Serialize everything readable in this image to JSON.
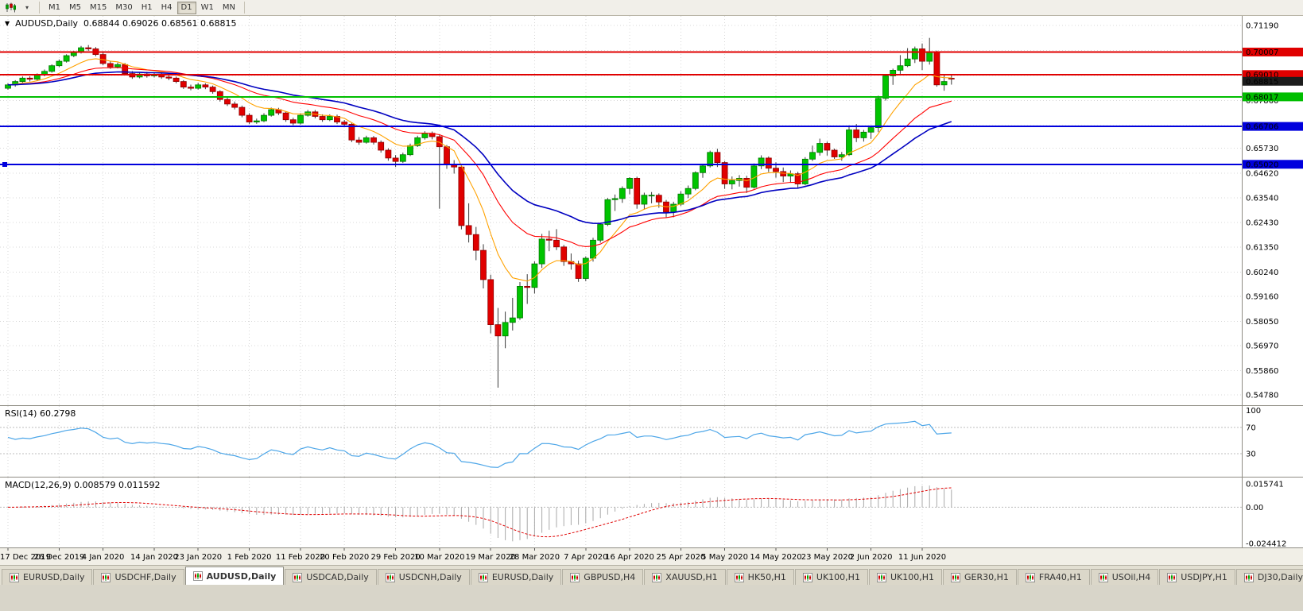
{
  "toolbar": {
    "chart_type_icon": "candlestick-chart",
    "dropdown_icon": "▾",
    "timeframes": [
      "M1",
      "M5",
      "M15",
      "M30",
      "H1",
      "H4",
      "D1",
      "W1",
      "MN"
    ],
    "active_timeframe": "D1"
  },
  "chart_header": {
    "collapse_icon": "▼",
    "symbol": "AUDUSD,Daily",
    "ohlc": "0.68844 0.69026 0.68561 0.68815"
  },
  "price_axis": {
    "labels": [
      "0.71190",
      "0.70080",
      "0.68970",
      "0.67860",
      "0.66750",
      "0.65730",
      "0.64620",
      "0.63540",
      "0.62430",
      "0.61350",
      "0.60240",
      "0.59160",
      "0.58050",
      "0.56970",
      "0.55860",
      "0.54780"
    ]
  },
  "chart_data": {
    "type": "candlestick",
    "symbol": "AUDUSD",
    "timeframe": "Daily",
    "y_range": [
      0.5478,
      0.7119
    ],
    "grid_color": "#d8d8d8",
    "candle_colors": {
      "up": "#00c400",
      "up_border": "#007700",
      "down": "#e00000",
      "down_border": "#8f0000",
      "wick": "#3a3a3a"
    },
    "x_labels": [
      "17 Dec 2019",
      "26 Dec 2019",
      "4 Jan 2020",
      "14 Jan 2020",
      "23 Jan 2020",
      "1 Feb 2020",
      "11 Feb 2020",
      "20 Feb 2020",
      "29 Feb 2020",
      "10 Mar 2020",
      "19 Mar 2020",
      "28 Mar 2020",
      "7 Apr 2020",
      "16 Apr 2020",
      "25 Apr 2020",
      "5 May 2020",
      "14 May 2020",
      "23 May 2020",
      "2 Jun 2020",
      "11 Jun 2020"
    ],
    "x_label_indices": [
      0,
      7,
      13,
      20,
      26,
      33,
      40,
      46,
      53,
      59,
      66,
      72,
      79,
      85,
      92,
      98,
      105,
      112,
      118,
      125
    ],
    "ohlc": [
      [
        0.684,
        0.6862,
        0.6833,
        0.6855
      ],
      [
        0.6855,
        0.6876,
        0.6847,
        0.687
      ],
      [
        0.687,
        0.6892,
        0.6864,
        0.6885
      ],
      [
        0.6885,
        0.6893,
        0.687,
        0.688
      ],
      [
        0.688,
        0.6906,
        0.6874,
        0.69
      ],
      [
        0.69,
        0.6923,
        0.6893,
        0.6915
      ],
      [
        0.6915,
        0.6946,
        0.6909,
        0.694
      ],
      [
        0.694,
        0.6968,
        0.6934,
        0.696
      ],
      [
        0.696,
        0.6991,
        0.6954,
        0.6985
      ],
      [
        0.6985,
        0.7006,
        0.6978,
        0.7
      ],
      [
        0.7,
        0.7028,
        0.6994,
        0.702
      ],
      [
        0.702,
        0.7032,
        0.7006,
        0.7015
      ],
      [
        0.7015,
        0.7023,
        0.6982,
        0.699
      ],
      [
        0.699,
        0.6998,
        0.6942,
        0.695
      ],
      [
        0.695,
        0.6961,
        0.6926,
        0.6935
      ],
      [
        0.6935,
        0.6954,
        0.6928,
        0.6945
      ],
      [
        0.6945,
        0.6952,
        0.6898,
        0.6905
      ],
      [
        0.6905,
        0.6916,
        0.6882,
        0.689
      ],
      [
        0.689,
        0.6912,
        0.6884,
        0.6903
      ],
      [
        0.6903,
        0.6913,
        0.6887,
        0.6895
      ],
      [
        0.6895,
        0.6909,
        0.6888,
        0.69
      ],
      [
        0.69,
        0.6908,
        0.6882,
        0.689
      ],
      [
        0.689,
        0.6899,
        0.6876,
        0.6885
      ],
      [
        0.6885,
        0.6892,
        0.6862,
        0.687
      ],
      [
        0.687,
        0.6876,
        0.6837,
        0.6845
      ],
      [
        0.6845,
        0.6856,
        0.6831,
        0.684
      ],
      [
        0.684,
        0.6864,
        0.6834,
        0.6855
      ],
      [
        0.6855,
        0.6862,
        0.6836,
        0.6845
      ],
      [
        0.6845,
        0.6852,
        0.6816,
        0.6825
      ],
      [
        0.6825,
        0.6831,
        0.6781,
        0.679
      ],
      [
        0.679,
        0.6801,
        0.6761,
        0.677
      ],
      [
        0.677,
        0.6781,
        0.6746,
        0.6755
      ],
      [
        0.6755,
        0.6763,
        0.6711,
        0.672
      ],
      [
        0.672,
        0.6729,
        0.6681,
        0.669
      ],
      [
        0.669,
        0.6705,
        0.6682,
        0.6695
      ],
      [
        0.6695,
        0.6729,
        0.6689,
        0.672
      ],
      [
        0.672,
        0.6754,
        0.6714,
        0.6745
      ],
      [
        0.6745,
        0.6753,
        0.6721,
        0.673
      ],
      [
        0.673,
        0.6738,
        0.6691,
        0.67
      ],
      [
        0.67,
        0.6709,
        0.6676,
        0.6685
      ],
      [
        0.6685,
        0.6729,
        0.6679,
        0.672
      ],
      [
        0.672,
        0.6744,
        0.6714,
        0.6735
      ],
      [
        0.6735,
        0.6743,
        0.6706,
        0.6715
      ],
      [
        0.6715,
        0.6724,
        0.6691,
        0.67
      ],
      [
        0.67,
        0.6724,
        0.6694,
        0.6715
      ],
      [
        0.6715,
        0.6723,
        0.6681,
        0.669
      ],
      [
        0.669,
        0.6699,
        0.6671,
        0.668
      ],
      [
        0.668,
        0.6687,
        0.6601,
        0.661
      ],
      [
        0.661,
        0.6623,
        0.6589,
        0.66
      ],
      [
        0.66,
        0.6629,
        0.6594,
        0.662
      ],
      [
        0.662,
        0.6628,
        0.659,
        0.66
      ],
      [
        0.66,
        0.6608,
        0.6554,
        0.6565
      ],
      [
        0.6565,
        0.6573,
        0.6518,
        0.653
      ],
      [
        0.653,
        0.6543,
        0.649,
        0.6515
      ],
      [
        0.6515,
        0.6554,
        0.6508,
        0.6545
      ],
      [
        0.6545,
        0.6594,
        0.6539,
        0.6585
      ],
      [
        0.6585,
        0.6629,
        0.6579,
        0.662
      ],
      [
        0.662,
        0.6649,
        0.6612,
        0.664
      ],
      [
        0.664,
        0.6648,
        0.6613,
        0.6625
      ],
      [
        0.6625,
        0.6634,
        0.6305,
        0.658
      ],
      [
        0.658,
        0.6588,
        0.6482,
        0.65
      ],
      [
        0.65,
        0.6521,
        0.6461,
        0.649
      ],
      [
        0.649,
        0.6498,
        0.6213,
        0.623
      ],
      [
        0.623,
        0.6329,
        0.6155,
        0.619
      ],
      [
        0.619,
        0.6224,
        0.6076,
        0.612
      ],
      [
        0.612,
        0.6147,
        0.5951,
        0.599
      ],
      [
        0.599,
        0.6012,
        0.5751,
        0.579
      ],
      [
        0.579,
        0.5864,
        0.551,
        0.574
      ],
      [
        0.574,
        0.5848,
        0.5685,
        0.58
      ],
      [
        0.58,
        0.5909,
        0.5764,
        0.582
      ],
      [
        0.582,
        0.5979,
        0.5811,
        0.596
      ],
      [
        0.596,
        0.6014,
        0.5882,
        0.5955
      ],
      [
        0.5955,
        0.6071,
        0.5928,
        0.606
      ],
      [
        0.606,
        0.6193,
        0.6042,
        0.617
      ],
      [
        0.617,
        0.6207,
        0.6116,
        0.6165
      ],
      [
        0.6165,
        0.6214,
        0.6121,
        0.6135
      ],
      [
        0.6135,
        0.6144,
        0.6051,
        0.607
      ],
      [
        0.607,
        0.6106,
        0.6034,
        0.606
      ],
      [
        0.606,
        0.6074,
        0.598,
        0.5995
      ],
      [
        0.5995,
        0.6093,
        0.5983,
        0.6085
      ],
      [
        0.6085,
        0.6176,
        0.607,
        0.6165
      ],
      [
        0.6165,
        0.6243,
        0.6154,
        0.6235
      ],
      [
        0.6235,
        0.6353,
        0.6228,
        0.6345
      ],
      [
        0.6345,
        0.6368,
        0.6295,
        0.635
      ],
      [
        0.635,
        0.6404,
        0.6331,
        0.6395
      ],
      [
        0.6395,
        0.6445,
        0.6369,
        0.644
      ],
      [
        0.644,
        0.6447,
        0.6305,
        0.6325
      ],
      [
        0.6325,
        0.6376,
        0.6301,
        0.6365
      ],
      [
        0.6365,
        0.6379,
        0.6329,
        0.6365
      ],
      [
        0.6365,
        0.6373,
        0.6309,
        0.6335
      ],
      [
        0.6335,
        0.6344,
        0.6265,
        0.629
      ],
      [
        0.629,
        0.6336,
        0.6267,
        0.6325
      ],
      [
        0.6325,
        0.6383,
        0.6317,
        0.637
      ],
      [
        0.637,
        0.6408,
        0.6352,
        0.6395
      ],
      [
        0.6395,
        0.6471,
        0.6387,
        0.6465
      ],
      [
        0.6465,
        0.6502,
        0.6442,
        0.6495
      ],
      [
        0.6495,
        0.6563,
        0.6488,
        0.6555
      ],
      [
        0.6555,
        0.6571,
        0.649,
        0.651
      ],
      [
        0.651,
        0.6517,
        0.6393,
        0.6415
      ],
      [
        0.6415,
        0.6448,
        0.6391,
        0.643
      ],
      [
        0.643,
        0.6454,
        0.6403,
        0.644
      ],
      [
        0.644,
        0.6451,
        0.6375,
        0.64
      ],
      [
        0.64,
        0.6506,
        0.6394,
        0.6495
      ],
      [
        0.6495,
        0.6542,
        0.6481,
        0.653
      ],
      [
        0.653,
        0.6537,
        0.6468,
        0.6485
      ],
      [
        0.6485,
        0.6511,
        0.6443,
        0.647
      ],
      [
        0.647,
        0.6488,
        0.6423,
        0.645
      ],
      [
        0.645,
        0.6475,
        0.642,
        0.646
      ],
      [
        0.646,
        0.6469,
        0.6399,
        0.6415
      ],
      [
        0.6415,
        0.6534,
        0.6409,
        0.6525
      ],
      [
        0.6525,
        0.6585,
        0.6517,
        0.6555
      ],
      [
        0.6555,
        0.6616,
        0.6541,
        0.6595
      ],
      [
        0.6595,
        0.6603,
        0.6541,
        0.6565
      ],
      [
        0.6565,
        0.6572,
        0.6526,
        0.6535
      ],
      [
        0.6535,
        0.6557,
        0.6518,
        0.6545
      ],
      [
        0.6545,
        0.6675,
        0.6539,
        0.6655
      ],
      [
        0.6655,
        0.6681,
        0.6601,
        0.662
      ],
      [
        0.662,
        0.6655,
        0.6603,
        0.6645
      ],
      [
        0.6645,
        0.6668,
        0.6615,
        0.6665
      ],
      [
        0.6665,
        0.6807,
        0.6645,
        0.6795
      ],
      [
        0.6795,
        0.6903,
        0.6785,
        0.6895
      ],
      [
        0.6895,
        0.6927,
        0.6855,
        0.692
      ],
      [
        0.692,
        0.6987,
        0.6904,
        0.694
      ],
      [
        0.694,
        0.7018,
        0.6934,
        0.697
      ],
      [
        0.697,
        0.7025,
        0.6952,
        0.7015
      ],
      [
        0.7015,
        0.7039,
        0.6921,
        0.696
      ],
      [
        0.696,
        0.70635,
        0.6945,
        0.7
      ],
      [
        0.7,
        0.7007,
        0.6847,
        0.6855
      ],
      [
        0.6855,
        0.6902,
        0.6829,
        0.687
      ],
      [
        0.68844,
        0.69026,
        0.68561,
        0.68815
      ]
    ],
    "moving_averages": [
      {
        "name": "ma-fast",
        "period": 9,
        "method": "ema",
        "color": "#ffa200"
      },
      {
        "name": "ma-medium",
        "period": 21,
        "method": "ema",
        "color": "#ff0000"
      },
      {
        "name": "ma-slow",
        "period": 34,
        "method": "ema",
        "color": "#0000c0"
      }
    ],
    "levels": [
      {
        "label": "0.70007",
        "value": 0.70007,
        "color": "#e00000"
      },
      {
        "label": "0.69010",
        "value": 0.6901,
        "color": "#e00000"
      },
      {
        "label": "0.68017",
        "value": 0.68017,
        "color": "#00be00"
      },
      {
        "label": "0.66706",
        "value": 0.66706,
        "color": "#0000dd"
      },
      {
        "label": "0.65020",
        "value": 0.6502,
        "color": "#0000dd",
        "handle": true
      }
    ],
    "current_price": {
      "label": "0.68815",
      "value": 0.68815,
      "box_color": "#1c1c1c",
      "text_color": "#ffffff"
    }
  },
  "rsi": {
    "label": "RSI(14) 60.2798",
    "period": 14,
    "value": 60.2798,
    "axis_labels": [
      "100",
      "70",
      "30"
    ],
    "line_color": "#4da6e8"
  },
  "macd": {
    "label": "MACD(12,26,9) 0.008579 0.011592",
    "macd_value": 0.008579,
    "signal_value": 0.011592,
    "axis_labels": [
      "0.015741",
      "0.00",
      "-0.024412"
    ],
    "histogram_color": "#a9a9a9",
    "signal_color": "#e00000"
  },
  "tabbar": {
    "active_index": 2,
    "tabs": [
      "EURUSD,Daily",
      "USDCHF,Daily",
      "AUDUSD,Daily",
      "USDCAD,Daily",
      "USDCNH,Daily",
      "EURUSD,Daily",
      "GBPUSD,H4",
      "XAUUSD,H1",
      "HK50,H1",
      "UK100,H1",
      "UK100,H1",
      "GER30,H1",
      "FRA40,H1",
      "USOil,H4",
      "USDJPY,H1",
      "DJ30,Daily"
    ]
  }
}
